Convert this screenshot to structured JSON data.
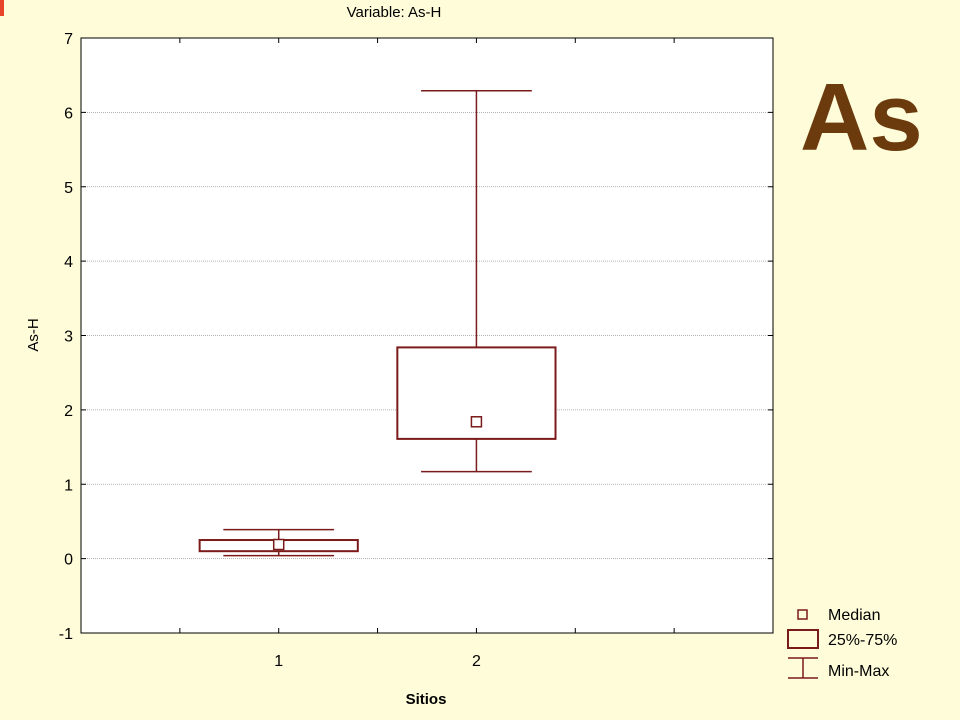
{
  "chart_data": {
    "type": "boxplot",
    "title": "Variable: As-H",
    "xlabel": "Sitios",
    "ylabel": "As-H",
    "ylim": [
      -1,
      7
    ],
    "yticks": [
      -1,
      0,
      1,
      2,
      3,
      4,
      5,
      6,
      7
    ],
    "xlim": [
      0,
      3.5
    ],
    "xtick_minor": [
      0.5,
      1,
      1.5,
      2,
      2.5,
      3
    ],
    "categories": [
      "1",
      "2"
    ],
    "boxes": [
      {
        "category": "1",
        "min": 0.04,
        "q1": 0.1,
        "median": 0.19,
        "q3": 0.25,
        "max": 0.39
      },
      {
        "category": "2",
        "min": 1.17,
        "q1": 1.61,
        "median": 1.84,
        "q3": 2.84,
        "max": 6.29
      }
    ],
    "legend": {
      "position": "bottom-right",
      "entries": [
        "Median",
        "25%-75%",
        "Min-Max"
      ]
    },
    "grid": true,
    "color": "#7a1a1a"
  },
  "annotation": {
    "text": "As",
    "color": "#6b3a0d"
  },
  "page": {
    "background": "#fefcd9"
  }
}
